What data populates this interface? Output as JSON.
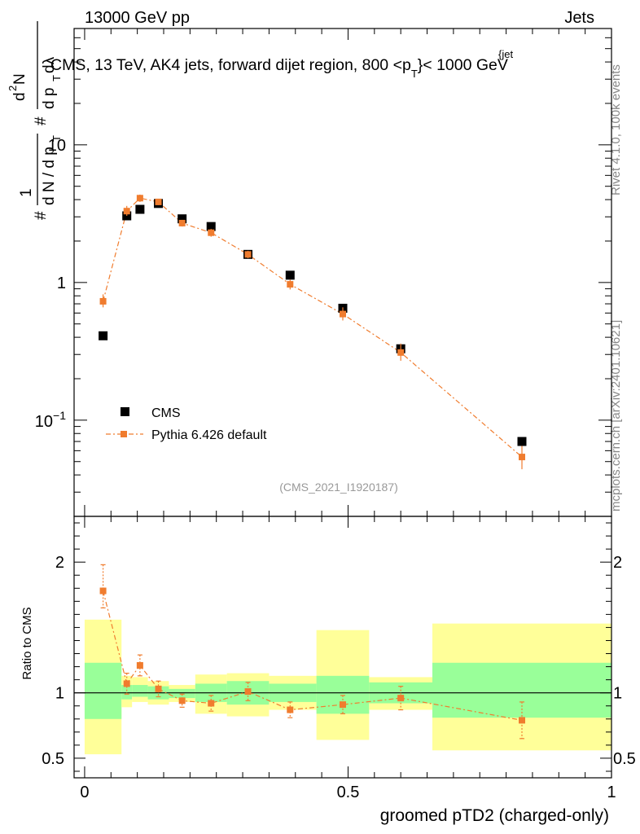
{
  "header": {
    "left": "13000 GeV pp",
    "right": "Jets"
  },
  "side_labels": {
    "rivet": "Rivet 4.1.0,  100k events",
    "mcplots": "mcplots.cern.ch [arXiv:2401.10621]"
  },
  "chart_data": [
    {
      "type": "scatter",
      "title": "CMS, 13 TeV, AK4 jets, forward dijet region, 800 <p",
      "title_sub": "T",
      "title_sup": "{jet",
      "title_end": "}< 1000 GeV",
      "analysis_id": "(CMS_2021_I1920187)",
      "ylabel_parts": [
        "#",
        "1",
        "d N / d p",
        "T",
        "#",
        "d",
        "2",
        "N",
        "d p",
        "T",
        " dλ"
      ],
      "yscale": "log",
      "ylim": [
        0.02,
        70
      ],
      "xlim": [
        -0.02,
        1.0
      ],
      "y_ticks": [
        {
          "value": 0.1,
          "base": "10",
          "exp": "−1"
        },
        {
          "value": 1,
          "label": "1"
        },
        {
          "value": 10,
          "label": "10"
        }
      ],
      "legend": [
        {
          "name": "CMS",
          "marker": "square",
          "color": "#000000"
        },
        {
          "name": "Pythia 6.426 default",
          "marker": "square-line",
          "color": "#f07c2e"
        }
      ],
      "series": [
        {
          "name": "CMS",
          "color": "#000000",
          "points": [
            {
              "x": 0.035,
              "y": 0.41
            },
            {
              "x": 0.08,
              "y": 3.05
            },
            {
              "x": 0.105,
              "y": 3.4
            },
            {
              "x": 0.14,
              "y": 3.75
            },
            {
              "x": 0.185,
              "y": 2.9
            },
            {
              "x": 0.24,
              "y": 2.55
            },
            {
              "x": 0.31,
              "y": 1.6
            },
            {
              "x": 0.39,
              "y": 1.13
            },
            {
              "x": 0.49,
              "y": 0.65
            },
            {
              "x": 0.6,
              "y": 0.33
            },
            {
              "x": 0.83,
              "y": 0.07
            }
          ]
        },
        {
          "name": "Pythia 6.426 default",
          "color": "#f07c2e",
          "points": [
            {
              "x": 0.035,
              "y": 0.73,
              "lo": 0.66,
              "hi": 0.82
            },
            {
              "x": 0.08,
              "y": 3.3,
              "lo": 3.05,
              "hi": 3.6
            },
            {
              "x": 0.105,
              "y": 4.1,
              "lo": 3.85,
              "hi": 4.35
            },
            {
              "x": 0.14,
              "y": 3.85,
              "lo": 3.65,
              "hi": 4.05
            },
            {
              "x": 0.185,
              "y": 2.7,
              "lo": 2.55,
              "hi": 2.85
            },
            {
              "x": 0.24,
              "y": 2.3,
              "lo": 2.15,
              "hi": 2.45
            },
            {
              "x": 0.31,
              "y": 1.6,
              "lo": 1.5,
              "hi": 1.7
            },
            {
              "x": 0.39,
              "y": 0.97,
              "lo": 0.89,
              "hi": 1.05
            },
            {
              "x": 0.49,
              "y": 0.59,
              "lo": 0.53,
              "hi": 0.66
            },
            {
              "x": 0.6,
              "y": 0.31,
              "lo": 0.27,
              "hi": 0.36
            },
            {
              "x": 0.83,
              "y": 0.054,
              "lo": 0.044,
              "hi": 0.065
            }
          ]
        }
      ]
    },
    {
      "type": "scatter",
      "ylabel": "Ratio to CMS",
      "xlabel": "groomed pTD2 (charged-only)",
      "xlim": [
        -0.02,
        1.0
      ],
      "ylim": [
        0.35,
        2.35
      ],
      "x_ticks": [
        {
          "value": 0,
          "label": "0"
        },
        {
          "value": 0.5,
          "label": "0.5"
        },
        {
          "value": 1,
          "label": "1"
        }
      ],
      "y_ticks": [
        {
          "value": 0.5,
          "label": "0.5"
        },
        {
          "value": 1,
          "label": "1"
        },
        {
          "value": 2,
          "label": "2"
        }
      ],
      "reference_line": 1,
      "uncertainty_bands": [
        {
          "x0": 0.0,
          "x1": 0.07,
          "inner_lo": 0.8,
          "inner_hi": 1.23,
          "outer_lo": 0.53,
          "outer_hi": 1.56
        },
        {
          "x0": 0.07,
          "x1": 0.09,
          "inner_lo": 0.95,
          "inner_hi": 1.06,
          "outer_lo": 0.89,
          "outer_hi": 1.13
        },
        {
          "x0": 0.09,
          "x1": 0.12,
          "inner_lo": 0.97,
          "inner_hi": 1.06,
          "outer_lo": 0.93,
          "outer_hi": 1.12
        },
        {
          "x0": 0.12,
          "x1": 0.16,
          "inner_lo": 0.95,
          "inner_hi": 1.05,
          "outer_lo": 0.91,
          "outer_hi": 1.09
        },
        {
          "x0": 0.16,
          "x1": 0.21,
          "inner_lo": 0.96,
          "inner_hi": 1.03,
          "outer_lo": 0.93,
          "outer_hi": 1.06
        },
        {
          "x0": 0.21,
          "x1": 0.27,
          "inner_lo": 0.93,
          "inner_hi": 1.07,
          "outer_lo": 0.84,
          "outer_hi": 1.14
        },
        {
          "x0": 0.27,
          "x1": 0.35,
          "inner_lo": 0.91,
          "inner_hi": 1.09,
          "outer_lo": 0.82,
          "outer_hi": 1.15
        },
        {
          "x0": 0.35,
          "x1": 0.44,
          "inner_lo": 0.93,
          "inner_hi": 1.07,
          "outer_lo": 0.87,
          "outer_hi": 1.13
        },
        {
          "x0": 0.44,
          "x1": 0.54,
          "inner_lo": 0.84,
          "inner_hi": 1.13,
          "outer_lo": 0.64,
          "outer_hi": 1.48
        },
        {
          "x0": 0.54,
          "x1": 0.66,
          "inner_lo": 0.92,
          "inner_hi": 1.08,
          "outer_lo": 0.87,
          "outer_hi": 1.12
        },
        {
          "x0": 0.66,
          "x1": 1.0,
          "inner_lo": 0.81,
          "inner_hi": 1.23,
          "outer_lo": 0.56,
          "outer_hi": 1.53
        }
      ],
      "series": [
        {
          "name": "Pythia 6.426 default / CMS",
          "color": "#f07c2e",
          "points": [
            {
              "x": 0.035,
              "y": 1.78,
              "lo": 1.65,
              "hi": 1.98
            },
            {
              "x": 0.08,
              "y": 1.07,
              "lo": 0.99,
              "hi": 1.15
            },
            {
              "x": 0.105,
              "y": 1.21,
              "lo": 1.13,
              "hi": 1.29
            },
            {
              "x": 0.14,
              "y": 1.03,
              "lo": 0.97,
              "hi": 1.09
            },
            {
              "x": 0.185,
              "y": 0.94,
              "lo": 0.89,
              "hi": 0.99
            },
            {
              "x": 0.24,
              "y": 0.92,
              "lo": 0.86,
              "hi": 0.98
            },
            {
              "x": 0.31,
              "y": 1.01,
              "lo": 0.94,
              "hi": 1.08
            },
            {
              "x": 0.39,
              "y": 0.87,
              "lo": 0.81,
              "hi": 0.93
            },
            {
              "x": 0.49,
              "y": 0.91,
              "lo": 0.84,
              "hi": 0.98
            },
            {
              "x": 0.6,
              "y": 0.96,
              "lo": 0.87,
              "hi": 1.05
            },
            {
              "x": 0.83,
              "y": 0.79,
              "lo": 0.65,
              "hi": 0.93
            }
          ]
        }
      ]
    }
  ]
}
